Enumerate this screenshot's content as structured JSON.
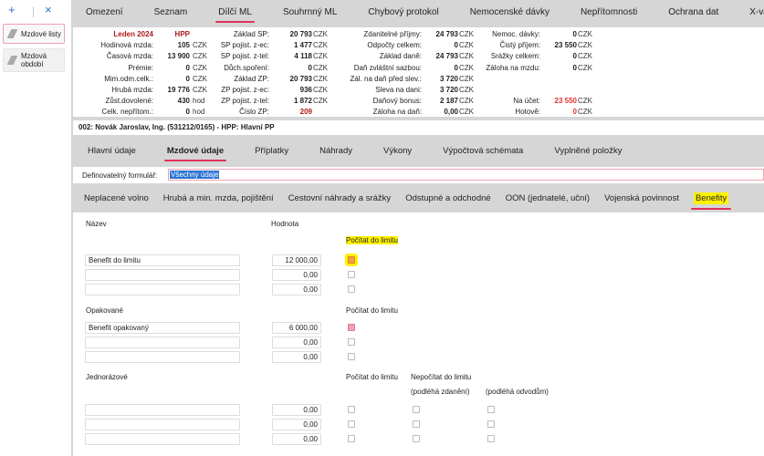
{
  "sidebar": {
    "add_icon": "+",
    "close_icon": "×",
    "items": [
      {
        "label": "Mzdové listy",
        "active": true
      },
      {
        "label": "Mzdová období",
        "active": false
      }
    ]
  },
  "nav": [
    "Omezení",
    "Seznam",
    "Dílčí ML",
    "Souhrnný ML",
    "Chybový protokol",
    "Nemocenské dávky",
    "Nepřítomnosti",
    "Ochrana dat",
    "X-vazby"
  ],
  "nav_active": "Dílčí ML",
  "summary": {
    "col1": [
      [
        "Leden 2024",
        "HPP",
        ""
      ],
      [
        "Hodinová mzda:",
        "105",
        "CZK"
      ],
      [
        "Časová mzda:",
        "13 900",
        "CZK"
      ],
      [
        "Prémie:",
        "0",
        "CZK"
      ],
      [
        "Mim.odm.celk.:",
        "0",
        "CZK"
      ],
      [
        "Hrubá mzda:",
        "19 776",
        "CZK"
      ],
      [
        "Zůst.dovolené:",
        "430",
        "hod"
      ],
      [
        "Celk. nepřítom.:",
        "0",
        "hod"
      ]
    ],
    "col2": [
      [
        "Základ SP:",
        "20 793",
        "CZK"
      ],
      [
        "SP pojist. z-ec:",
        "1 477",
        "CZK"
      ],
      [
        "SP pojist. z-tel:",
        "4 118",
        "CZK"
      ],
      [
        "Důch.spoření:",
        "0",
        "CZK"
      ],
      [
        "Základ ZP:",
        "20 793",
        "CZK"
      ],
      [
        "ZP pojist. z-ec:",
        "936",
        "CZK"
      ],
      [
        "ZP pojist. z-tel:",
        "1 872",
        "CZK"
      ],
      [
        "Číslo ZP:",
        "209",
        ""
      ]
    ],
    "col3": [
      [
        "Zdanitelné příjmy:",
        "24 793",
        "CZK"
      ],
      [
        "Odpočty celkem:",
        "0",
        "CZK"
      ],
      [
        "Základ daně:",
        "24 793",
        "CZK"
      ],
      [
        "Daň zvláštní sazbou:",
        "0",
        "CZK"
      ],
      [
        "Zál. na daň před slev.:",
        "3 720",
        "CZK"
      ],
      [
        "Sleva na dani:",
        "3 720",
        "CZK"
      ],
      [
        "Daňový bonus:",
        "2 187",
        "CZK"
      ],
      [
        "Záloha na daň:",
        "0,00",
        "CZK"
      ]
    ],
    "col4": [
      [
        "Nemoc. dávky:",
        "0",
        "CZK"
      ],
      [
        "Čistý příjem:",
        "23 550",
        "CZK"
      ],
      [
        "Srážky celkem:",
        "0",
        "CZK"
      ],
      [
        "Záloha na mzdu:",
        "0",
        "CZK"
      ],
      [
        "",
        "",
        ""
      ],
      [
        "",
        "",
        ""
      ],
      [
        "Na účet:",
        "23 550",
        "CZK"
      ],
      [
        "Hotově:",
        "0",
        "CZK"
      ]
    ]
  },
  "colors": {
    "accent": "#e0325a",
    "period": "#b01818",
    "highlight_amount": "#e53030",
    "highlight": "#fff200"
  },
  "employee": "002: Novák Jaroslav, Ing. (531212/0165) - HPP: Hlavní PP",
  "tabs": [
    "Hlavní údaje",
    "Mzdové údaje",
    "Příplatky",
    "Náhrady",
    "Výkony",
    "Výpočtová schémata",
    "Vyplněné položky"
  ],
  "tabs_active": "Mzdové údaje",
  "form": {
    "label": "Definovatelný formulář:",
    "value": "Všechny údaje"
  },
  "subtabs": [
    "Neplacené volno",
    "Hrubá a min. mzda, pojištění",
    "Cestovní náhrady a srážky",
    "Odstupné a odchodné",
    "OON (jednatelé, uční)",
    "Vojenská povinnost",
    "Benefity"
  ],
  "subtabs_active": "Benefity",
  "content": {
    "col_name": "Název",
    "col_value": "Hodnota",
    "limit_label": "Počítat do limitu",
    "group1": {
      "rows": [
        {
          "name": "Benefit do limitu",
          "value": "12 000,00",
          "limit": true
        },
        {
          "name": "",
          "value": "0,00",
          "limit": false
        },
        {
          "name": "",
          "value": "0,00",
          "limit": false
        }
      ]
    },
    "group2": {
      "title": "Opakované",
      "rows": [
        {
          "name": "Benefit opakovaný",
          "value": "6 000,00",
          "limit": true
        },
        {
          "name": "",
          "value": "0,00",
          "limit": false
        },
        {
          "name": "",
          "value": "0,00",
          "limit": false
        }
      ]
    },
    "group3": {
      "title": "Jednorázové",
      "nolimit_label": "Nepočítat do limitu",
      "tax_label": "(podléhá zdanění)",
      "levy_label": "(podléhá odvodům)",
      "rows": [
        {
          "value": "0,00"
        },
        {
          "value": "0,00"
        },
        {
          "value": "0,00"
        }
      ]
    }
  }
}
